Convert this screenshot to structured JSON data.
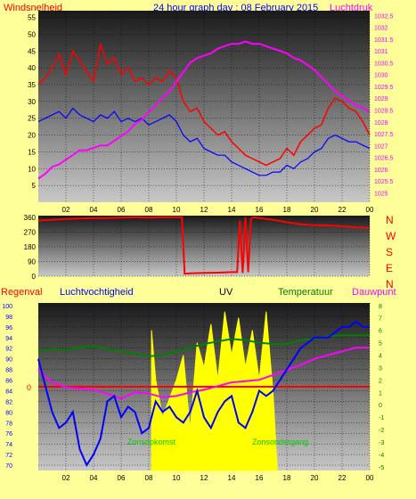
{
  "header": {
    "title": "24 hour graph day : 08 February 2015",
    "left_label": "Windsnelheid",
    "right_label": "Luchtdruk"
  },
  "legend2": {
    "regenval": "Regenval",
    "luchtvochtigheid": "Luchtvochtigheid",
    "uv": "UV",
    "temperatuur": "Temperatuur",
    "dauwpunt": "Dauwpunt"
  },
  "annotations": {
    "sunrise": "Zonsopkomst",
    "sunset": "Zonsondergang"
  },
  "colors": {
    "page_bg": "#ffff99",
    "wind_gust": "#ff0000",
    "wind_avg": "#0000ff",
    "pressure": "#ff00ff",
    "direction": "#ff0000",
    "humidity": "#0000ff",
    "temperature": "#008000",
    "dewpoint": "#ff00ff",
    "uv": "#ffff00",
    "solar": "#808080",
    "rain_zero": "#ff0000",
    "annotation": "#00cc00"
  },
  "chart_data": [
    {
      "type": "line",
      "name": "wind-pressure",
      "x_ticks": [
        "02",
        "04",
        "06",
        "08",
        "10",
        "12",
        "14",
        "16",
        "18",
        "20",
        "22",
        "00"
      ],
      "y_left_ticks": [
        5,
        10,
        15,
        20,
        25,
        30,
        35,
        40,
        45,
        50,
        55
      ],
      "y_right_ticks": [
        1025,
        1025.5,
        1026,
        1026.5,
        1027,
        1027.5,
        1028,
        1028.5,
        1029,
        1029.5,
        1030,
        1030.5,
        1031,
        1031.5,
        1032,
        1032.5
      ],
      "ylim_left": [
        0,
        57
      ],
      "ylim_right": [
        1024.6,
        1032.7
      ],
      "xlim": [
        0,
        24
      ],
      "series": [
        {
          "x": [
            0,
            0.5,
            1,
            1.5,
            2,
            2.5,
            3,
            3.5,
            4,
            4.5,
            5,
            5.5,
            6,
            6.5,
            7,
            7.5,
            8,
            8.5,
            9,
            9.5,
            10,
            10.5,
            11,
            11.5,
            12,
            12.5,
            13,
            13.5,
            14,
            14.5,
            15,
            15.5,
            16,
            16.5,
            17,
            17.5,
            18,
            18.5,
            19,
            19.5,
            20,
            20.5,
            21,
            21.5,
            22,
            22.5,
            23,
            23.5,
            24
          ],
          "values": [
            35,
            37,
            40,
            44,
            38,
            45,
            42,
            39,
            36,
            47,
            41,
            43,
            38,
            40,
            36,
            37,
            35,
            37,
            36,
            39,
            37,
            30,
            27,
            28,
            24,
            22,
            20,
            21,
            18,
            16,
            14,
            13,
            12,
            11,
            12,
            13,
            16,
            14,
            18,
            20,
            22,
            23,
            28,
            31,
            30,
            28,
            27,
            24,
            20
          ]
        },
        {
          "x": [
            0,
            0.5,
            1,
            1.5,
            2,
            2.5,
            3,
            3.5,
            4,
            4.5,
            5,
            5.5,
            6,
            6.5,
            7,
            7.5,
            8,
            8.5,
            9,
            9.5,
            10,
            10.5,
            11,
            11.5,
            12,
            12.5,
            13,
            13.5,
            14,
            14.5,
            15,
            15.5,
            16,
            16.5,
            17,
            17.5,
            18,
            18.5,
            19,
            19.5,
            20,
            20.5,
            21,
            21.5,
            22,
            22.5,
            23,
            23.5,
            24
          ],
          "values": [
            24,
            25,
            26,
            27,
            25,
            28,
            26,
            25,
            24,
            26,
            25,
            27,
            24,
            25,
            24,
            25,
            23,
            24,
            25,
            26,
            24,
            20,
            18,
            19,
            16,
            15,
            14,
            14,
            12,
            11,
            10,
            9,
            8,
            8,
            9,
            9,
            11,
            10,
            12,
            13,
            15,
            16,
            19,
            20,
            19,
            18,
            18,
            17,
            16
          ]
        },
        {
          "x": [
            0,
            0.5,
            1,
            1.5,
            2,
            2.5,
            3,
            3.5,
            4,
            4.5,
            5,
            5.5,
            6,
            6.5,
            7,
            7.5,
            8,
            8.5,
            9,
            9.5,
            10,
            10.5,
            11,
            11.5,
            12,
            12.5,
            13,
            13.5,
            14,
            14.5,
            15,
            15.5,
            16,
            16.5,
            17,
            17.5,
            18,
            18.5,
            19,
            19.5,
            20,
            20.5,
            21,
            21.5,
            22,
            22.5,
            23,
            23.5,
            24
          ],
          "values": [
            1025.6,
            1025.8,
            1026.1,
            1026.2,
            1026.4,
            1026.6,
            1026.8,
            1026.8,
            1026.9,
            1027.0,
            1027.0,
            1027.2,
            1027.4,
            1027.6,
            1027.9,
            1028.1,
            1028.4,
            1028.7,
            1029.0,
            1029.3,
            1029.7,
            1030.1,
            1030.5,
            1030.7,
            1030.8,
            1030.9,
            1031.1,
            1031.2,
            1031.3,
            1031.3,
            1031.4,
            1031.3,
            1031.3,
            1031.2,
            1031.1,
            1031.0,
            1030.9,
            1030.7,
            1030.6,
            1030.4,
            1030.2,
            1029.9,
            1029.6,
            1029.3,
            1029.1,
            1028.9,
            1028.7,
            1028.6,
            1028.4
          ]
        }
      ]
    },
    {
      "type": "line",
      "name": "wind-direction",
      "y_left_ticks": [
        0,
        90,
        180,
        270,
        360
      ],
      "ylim": [
        0,
        370
      ],
      "compass_labels": [
        "N",
        "W",
        "S",
        "E",
        "N"
      ],
      "series": [
        {
          "x": [
            0,
            1,
            2,
            3,
            4,
            5,
            6,
            7,
            8,
            9,
            10,
            10.4,
            10.6,
            11,
            12,
            13,
            14,
            14.4,
            14.6,
            14.8,
            15,
            15.2,
            15.4,
            15.6,
            16,
            17,
            18,
            19,
            20,
            21,
            22,
            23,
            24
          ],
          "values": [
            340,
            345,
            350,
            352,
            355,
            355,
            358,
            360,
            358,
            360,
            360,
            360,
            15,
            18,
            20,
            22,
            25,
            25,
            340,
            20,
            360,
            25,
            350,
            360,
            355,
            345,
            330,
            318,
            312,
            310,
            305,
            298,
            295
          ]
        }
      ]
    },
    {
      "type": "line",
      "name": "humidity-temperature",
      "y_left_ticks": [
        70,
        72,
        74,
        76,
        78,
        80,
        82,
        84,
        86,
        88,
        90,
        92,
        94,
        96,
        98,
        100
      ],
      "y_right_ticks": [
        -5,
        -4,
        -3,
        -2,
        -1,
        0,
        1,
        2,
        3,
        4,
        5,
        6,
        7,
        8
      ],
      "rain_zero_label": "0",
      "ylim_left": [
        69,
        100.5
      ],
      "ylim_right": [
        -5.3,
        8.2
      ],
      "series": [
        {
          "x": [
            0,
            0.5,
            1,
            1.5,
            2,
            2.5,
            3,
            3.5,
            4,
            4.5,
            5,
            5.5,
            6,
            6.5,
            7,
            7.5,
            8,
            8.5,
            9,
            9.5,
            10,
            10.5,
            11,
            11.5,
            12,
            12.5,
            13,
            13.5,
            14,
            14.5,
            15,
            15.5,
            16,
            16.5,
            17,
            17.5,
            18,
            18.5,
            19,
            19.5,
            20,
            20.5,
            21,
            21.5,
            22,
            22.5,
            23,
            23.5,
            24
          ],
          "values": [
            90,
            85,
            80,
            77,
            78,
            80,
            73,
            70,
            72,
            75,
            82,
            83,
            79,
            81,
            80,
            76,
            77,
            82,
            80,
            81,
            79,
            78,
            80,
            84,
            79,
            77,
            80,
            82,
            83,
            78,
            77,
            80,
            84,
            83,
            84,
            86,
            88,
            90,
            92,
            93,
            94,
            94,
            94,
            95,
            96,
            96,
            97,
            96,
            96
          ]
        },
        {
          "x": [
            0,
            1,
            2,
            3,
            4,
            5,
            6,
            7,
            8,
            9,
            10,
            11,
            12,
            13,
            14,
            15,
            16,
            17,
            18,
            19,
            20,
            21,
            22,
            23,
            24
          ],
          "values": [
            4.3,
            4.5,
            4.4,
            4.6,
            4.7,
            4.5,
            4.3,
            4.1,
            3.9,
            4.0,
            4.3,
            4.6,
            4.9,
            5.1,
            5.3,
            5.2,
            5.0,
            4.9,
            4.9,
            5.2,
            5.3,
            5.5,
            5.6,
            5.6,
            5.6
          ]
        },
        {
          "x": [
            0,
            1,
            2,
            3,
            4,
            5,
            6,
            7,
            8,
            9,
            10,
            11,
            12,
            13,
            14,
            15,
            16,
            17,
            18,
            19,
            20,
            21,
            22,
            23,
            24
          ],
          "values": [
            2.8,
            1.8,
            1.4,
            1.3,
            1.2,
            0.9,
            0.5,
            1.0,
            0.9,
            0.6,
            0.7,
            1.0,
            1.2,
            1.5,
            1.8,
            1.9,
            2.0,
            2.4,
            2.8,
            3.2,
            3.7,
            4.0,
            4.3,
            4.6,
            4.6
          ]
        },
        {
          "x": [
            8.2,
            8.5,
            9,
            9.5,
            10,
            10.5,
            11,
            11.5,
            12,
            12.5,
            13,
            13.5,
            14,
            14.5,
            15,
            15.5,
            16,
            16.5,
            17,
            17.3
          ],
          "values": [
            6.0,
            2.0,
            -1.0,
            0.5,
            2.0,
            4.0,
            -2.0,
            5.0,
            3.0,
            6.5,
            2.0,
            7.5,
            4.0,
            7.0,
            3.0,
            6.0,
            2.0,
            7.5,
            1.0,
            -5.0
          ]
        },
        {
          "x": [
            8.5,
            9,
            10,
            11,
            12,
            12.5,
            13,
            14,
            15,
            16,
            17,
            17.3
          ],
          "values": [
            -3.0,
            -2.0,
            -1.5,
            -1.0,
            -0.5,
            0.0,
            -0.5,
            -1.0,
            -0.5,
            0.5,
            1.0,
            -5.0
          ]
        }
      ]
    }
  ]
}
